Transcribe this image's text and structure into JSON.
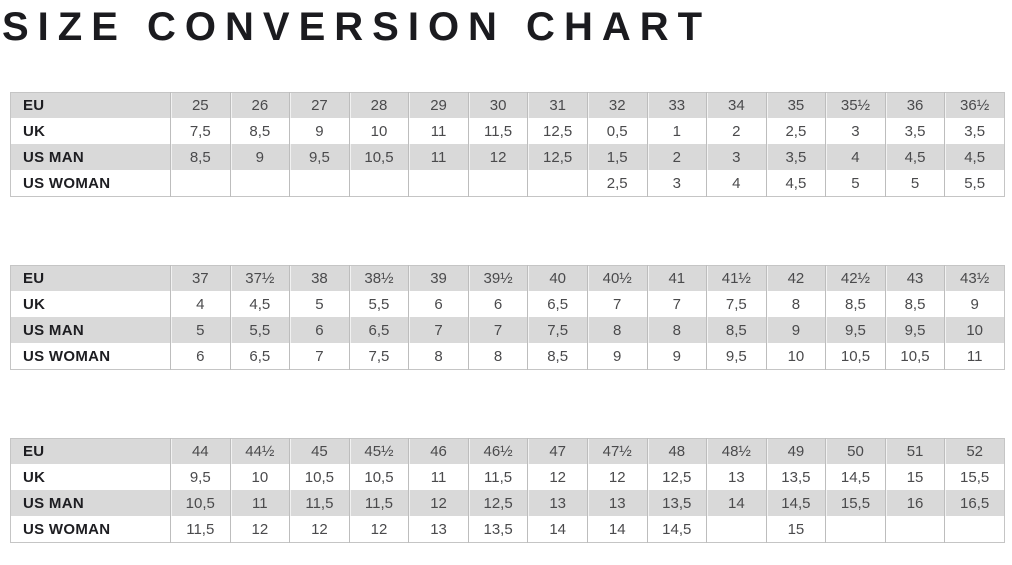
{
  "title": "SIZE CONVERSION CHART",
  "colors": {
    "band_gray": "#d9d9d9",
    "band_white": "#ffffff",
    "table_border": "#c5c5c5",
    "cell_divider": "#bdbdbd",
    "label_text": "#1d1d21",
    "value_text": "#4a4a4c",
    "title_text": "#1b1b1f"
  },
  "row_labels": [
    "EU",
    "UK",
    "US MAN",
    "US WOMAN"
  ],
  "chart_data": {
    "type": "table",
    "title": "SIZE CONVERSION CHART",
    "tables": [
      {
        "name": "sizes-eu-25-to-36half",
        "rows": [
          {
            "label": "EU",
            "values": [
              "25",
              "26",
              "27",
              "28",
              "29",
              "30",
              "31",
              "32",
              "33",
              "34",
              "35",
              "35½",
              "36",
              "36½"
            ]
          },
          {
            "label": "UK",
            "values": [
              "7,5",
              "8,5",
              "9",
              "10",
              "11",
              "11,5",
              "12,5",
              "0,5",
              "1",
              "2",
              "2,5",
              "3",
              "3,5",
              "3,5"
            ]
          },
          {
            "label": "US MAN",
            "values": [
              "8,5",
              "9",
              "9,5",
              "10,5",
              "11",
              "12",
              "12,5",
              "1,5",
              "2",
              "3",
              "3,5",
              "4",
              "4,5",
              "4,5"
            ]
          },
          {
            "label": "US WOMAN",
            "values": [
              "",
              "",
              "",
              "",
              "",
              "",
              "",
              "2,5",
              "3",
              "4",
              "4,5",
              "5",
              "5",
              "5,5"
            ]
          }
        ]
      },
      {
        "name": "sizes-eu-37-to-43half",
        "rows": [
          {
            "label": "EU",
            "values": [
              "37",
              "37½",
              "38",
              "38½",
              "39",
              "39½",
              "40",
              "40½",
              "41",
              "41½",
              "42",
              "42½",
              "43",
              "43½"
            ]
          },
          {
            "label": "UK",
            "values": [
              "4",
              "4,5",
              "5",
              "5,5",
              "6",
              "6",
              "6,5",
              "7",
              "7",
              "7,5",
              "8",
              "8,5",
              "8,5",
              "9"
            ]
          },
          {
            "label": "US MAN",
            "values": [
              "5",
              "5,5",
              "6",
              "6,5",
              "7",
              "7",
              "7,5",
              "8",
              "8",
              "8,5",
              "9",
              "9,5",
              "9,5",
              "10"
            ]
          },
          {
            "label": "US WOMAN",
            "values": [
              "6",
              "6,5",
              "7",
              "7,5",
              "8",
              "8",
              "8,5",
              "9",
              "9",
              "9,5",
              "10",
              "10,5",
              "10,5",
              "11"
            ]
          }
        ]
      },
      {
        "name": "sizes-eu-44-to-52",
        "rows": [
          {
            "label": "EU",
            "values": [
              "44",
              "44½",
              "45",
              "45½",
              "46",
              "46½",
              "47",
              "47½",
              "48",
              "48½",
              "49",
              "50",
              "51",
              "52"
            ]
          },
          {
            "label": "UK",
            "values": [
              "9,5",
              "10",
              "10,5",
              "10,5",
              "11",
              "11,5",
              "12",
              "12",
              "12,5",
              "13",
              "13,5",
              "14,5",
              "15",
              "15,5"
            ]
          },
          {
            "label": "US MAN",
            "values": [
              "10,5",
              "11",
              "11,5",
              "11,5",
              "12",
              "12,5",
              "13",
              "13",
              "13,5",
              "14",
              "14,5",
              "15,5",
              "16",
              "16,5"
            ]
          },
          {
            "label": "US WOMAN",
            "values": [
              "11,5",
              "12",
              "12",
              "12",
              "13",
              "13,5",
              "14",
              "14",
              "14,5",
              "",
              "15",
              "",
              "",
              ""
            ]
          }
        ]
      }
    ]
  }
}
